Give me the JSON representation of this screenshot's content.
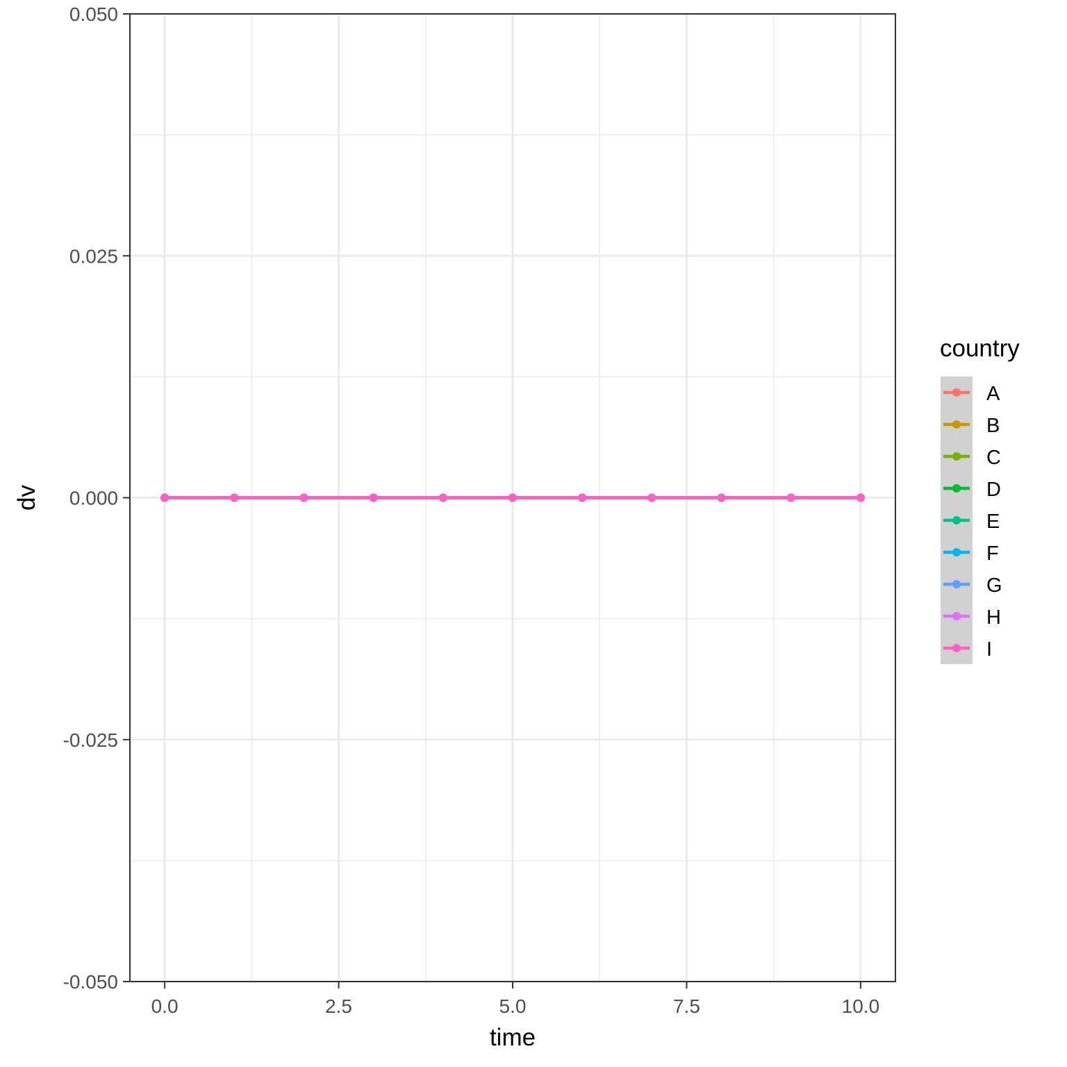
{
  "chart_data": {
    "type": "line",
    "x_label": "time",
    "y_label": "dv",
    "xlim": [
      -0.5,
      10.5
    ],
    "ylim": [
      -0.05,
      0.05
    ],
    "x_ticks": [
      0.0,
      2.5,
      5.0,
      7.5,
      10.0
    ],
    "x_tick_labels": [
      "0.0",
      "2.5",
      "5.0",
      "7.5",
      "10.0"
    ],
    "y_ticks": [
      -0.05,
      -0.025,
      0.0,
      0.025,
      0.05
    ],
    "y_tick_labels": [
      "-0.050",
      "-0.025",
      "0.000",
      "0.025",
      "0.050"
    ],
    "grid": true,
    "legend": {
      "title": "country",
      "position": "right"
    },
    "x": [
      0,
      1,
      2,
      3,
      4,
      5,
      6,
      7,
      8,
      9,
      10
    ],
    "series": [
      {
        "name": "A",
        "color": "#F8766D",
        "values": [
          0,
          0,
          0,
          0,
          0,
          0,
          0,
          0,
          0,
          0,
          0
        ]
      },
      {
        "name": "B",
        "color": "#C49A00",
        "values": [
          0,
          0,
          0,
          0,
          0,
          0,
          0,
          0,
          0,
          0,
          0
        ]
      },
      {
        "name": "C",
        "color": "#7CAE00",
        "values": [
          0,
          0,
          0,
          0,
          0,
          0,
          0,
          0,
          0,
          0,
          0
        ]
      },
      {
        "name": "D",
        "color": "#00BA38",
        "values": [
          0,
          0,
          0,
          0,
          0,
          0,
          0,
          0,
          0,
          0,
          0
        ]
      },
      {
        "name": "E",
        "color": "#00C08B",
        "values": [
          0,
          0,
          0,
          0,
          0,
          0,
          0,
          0,
          0,
          0,
          0
        ]
      },
      {
        "name": "F",
        "color": "#00B4EF",
        "values": [
          0,
          0,
          0,
          0,
          0,
          0,
          0,
          0,
          0,
          0,
          0
        ]
      },
      {
        "name": "G",
        "color": "#619CFF",
        "values": [
          0,
          0,
          0,
          0,
          0,
          0,
          0,
          0,
          0,
          0,
          0
        ]
      },
      {
        "name": "H",
        "color": "#DB72FB",
        "values": [
          0,
          0,
          0,
          0,
          0,
          0,
          0,
          0,
          0,
          0,
          0
        ]
      },
      {
        "name": "I",
        "color": "#FF61C3",
        "values": [
          0,
          0,
          0,
          0,
          0,
          0,
          0,
          0,
          0,
          0,
          0
        ]
      }
    ]
  }
}
